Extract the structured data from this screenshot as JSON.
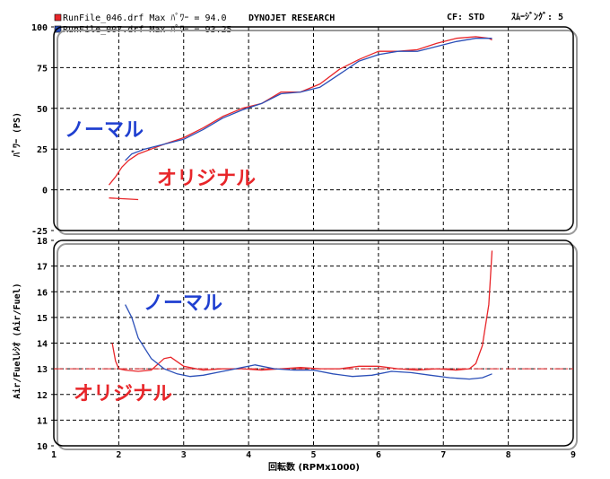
{
  "header": {
    "legend": [
      {
        "name": "RunFile_046.drf",
        "max_label": "Max ﾊﾟﾜｰ =",
        "max_value": "94.0",
        "color": "#e8262a"
      },
      {
        "name": "RunFile_007.drf",
        "max_label": "Max ﾊﾟﾜｰ =",
        "max_value": "93.25",
        "color": "#2b4fb8"
      }
    ],
    "brand": "DYNOJET  RESEARCH",
    "cf": "CF: STD",
    "smoothing": "ｽﾑｰｼﾞﾝｸﾞ: 5"
  },
  "annotations": {
    "top_normal": "ノーマル",
    "top_original": "オリジナル",
    "bottom_normal": "ノーマル",
    "bottom_original": "オリジナル",
    "normal_color": "#1f3fd0",
    "original_color": "#e8262a"
  },
  "chart_data": [
    {
      "type": "line",
      "ylabel": "ﾊﾟﾜｰ (PS)",
      "xlabel": "回転数 (RPMx1000)",
      "xlim": [
        1,
        9
      ],
      "ylim": [
        -25,
        100
      ],
      "x_ticks": [
        "1",
        "2",
        "3",
        "4",
        "5",
        "6",
        "7",
        "8",
        "9"
      ],
      "y_ticks": [
        "100",
        "75",
        "50",
        "25",
        "0",
        "-25"
      ],
      "grid": true,
      "series": [
        {
          "name": "RunFile_046.drf",
          "color": "#e8262a",
          "x": [
            1.85,
            1.95,
            2.05,
            2.15,
            2.3,
            2.5,
            2.7,
            3.0,
            3.3,
            3.6,
            3.9,
            4.2,
            4.5,
            4.8,
            5.1,
            5.4,
            5.7,
            6.0,
            6.3,
            6.6,
            6.9,
            7.2,
            7.5,
            7.7,
            7.75
          ],
          "y": [
            3,
            8,
            14,
            18,
            22,
            25,
            28,
            32,
            38,
            45,
            50,
            53,
            60,
            60,
            65,
            74,
            80,
            85,
            85,
            86,
            90,
            93,
            94,
            93,
            92
          ],
          "extra_segment": {
            "x": [
              1.85,
              2.3
            ],
            "y": [
              -5,
              -6
            ]
          }
        },
        {
          "name": "RunFile_007.drf",
          "color": "#2b4fb8",
          "x": [
            2.1,
            2.2,
            2.4,
            2.7,
            3.0,
            3.3,
            3.6,
            3.9,
            4.2,
            4.5,
            4.8,
            5.1,
            5.4,
            5.7,
            6.0,
            6.3,
            6.6,
            6.9,
            7.2,
            7.5,
            7.75
          ],
          "y": [
            18,
            22,
            25,
            28,
            31,
            37,
            44,
            49,
            53,
            59,
            60,
            63,
            71,
            79,
            83,
            85,
            85,
            88,
            91,
            93,
            93
          ]
        }
      ]
    },
    {
      "type": "line",
      "ylabel": "Air/Fuelﾚｼｵ (Air/Fuel)",
      "xlabel": "回転数 (RPMx1000)",
      "xlim": [
        1,
        9
      ],
      "ylim": [
        10,
        18
      ],
      "x_ticks": [
        "1",
        "2",
        "3",
        "4",
        "5",
        "6",
        "7",
        "8",
        "9"
      ],
      "y_ticks": [
        "18",
        "17",
        "16",
        "15",
        "14",
        "13",
        "12",
        "11",
        "10"
      ],
      "grid": true,
      "reference_line": 13,
      "series": [
        {
          "name": "RunFile_046.drf",
          "color": "#e8262a",
          "x": [
            1.9,
            1.95,
            2.0,
            2.1,
            2.3,
            2.5,
            2.7,
            2.8,
            3.0,
            3.3,
            3.6,
            3.9,
            4.2,
            4.5,
            4.8,
            5.1,
            5.4,
            5.7,
            6.0,
            6.3,
            6.6,
            6.9,
            7.2,
            7.4,
            7.5,
            7.6,
            7.7,
            7.75
          ],
          "y": [
            14.0,
            13.3,
            13.0,
            12.95,
            12.9,
            12.95,
            13.4,
            13.45,
            13.1,
            12.95,
            13.0,
            13.0,
            12.95,
            13.0,
            13.05,
            13.0,
            13.0,
            13.1,
            13.1,
            13.0,
            12.95,
            13.0,
            12.95,
            13.0,
            13.2,
            13.9,
            15.5,
            17.6
          ]
        },
        {
          "name": "RunFile_007.drf",
          "color": "#2b4fb8",
          "x": [
            2.1,
            2.2,
            2.3,
            2.5,
            2.7,
            2.9,
            3.1,
            3.3,
            3.6,
            3.9,
            4.1,
            4.4,
            4.7,
            5.0,
            5.3,
            5.6,
            5.9,
            6.2,
            6.5,
            6.8,
            7.1,
            7.4,
            7.6,
            7.75
          ],
          "y": [
            15.5,
            15.0,
            14.2,
            13.4,
            13.0,
            12.8,
            12.7,
            12.75,
            12.9,
            13.05,
            13.15,
            13.0,
            12.95,
            12.95,
            12.8,
            12.7,
            12.75,
            12.9,
            12.85,
            12.75,
            12.65,
            12.6,
            12.65,
            12.8
          ]
        }
      ]
    }
  ]
}
